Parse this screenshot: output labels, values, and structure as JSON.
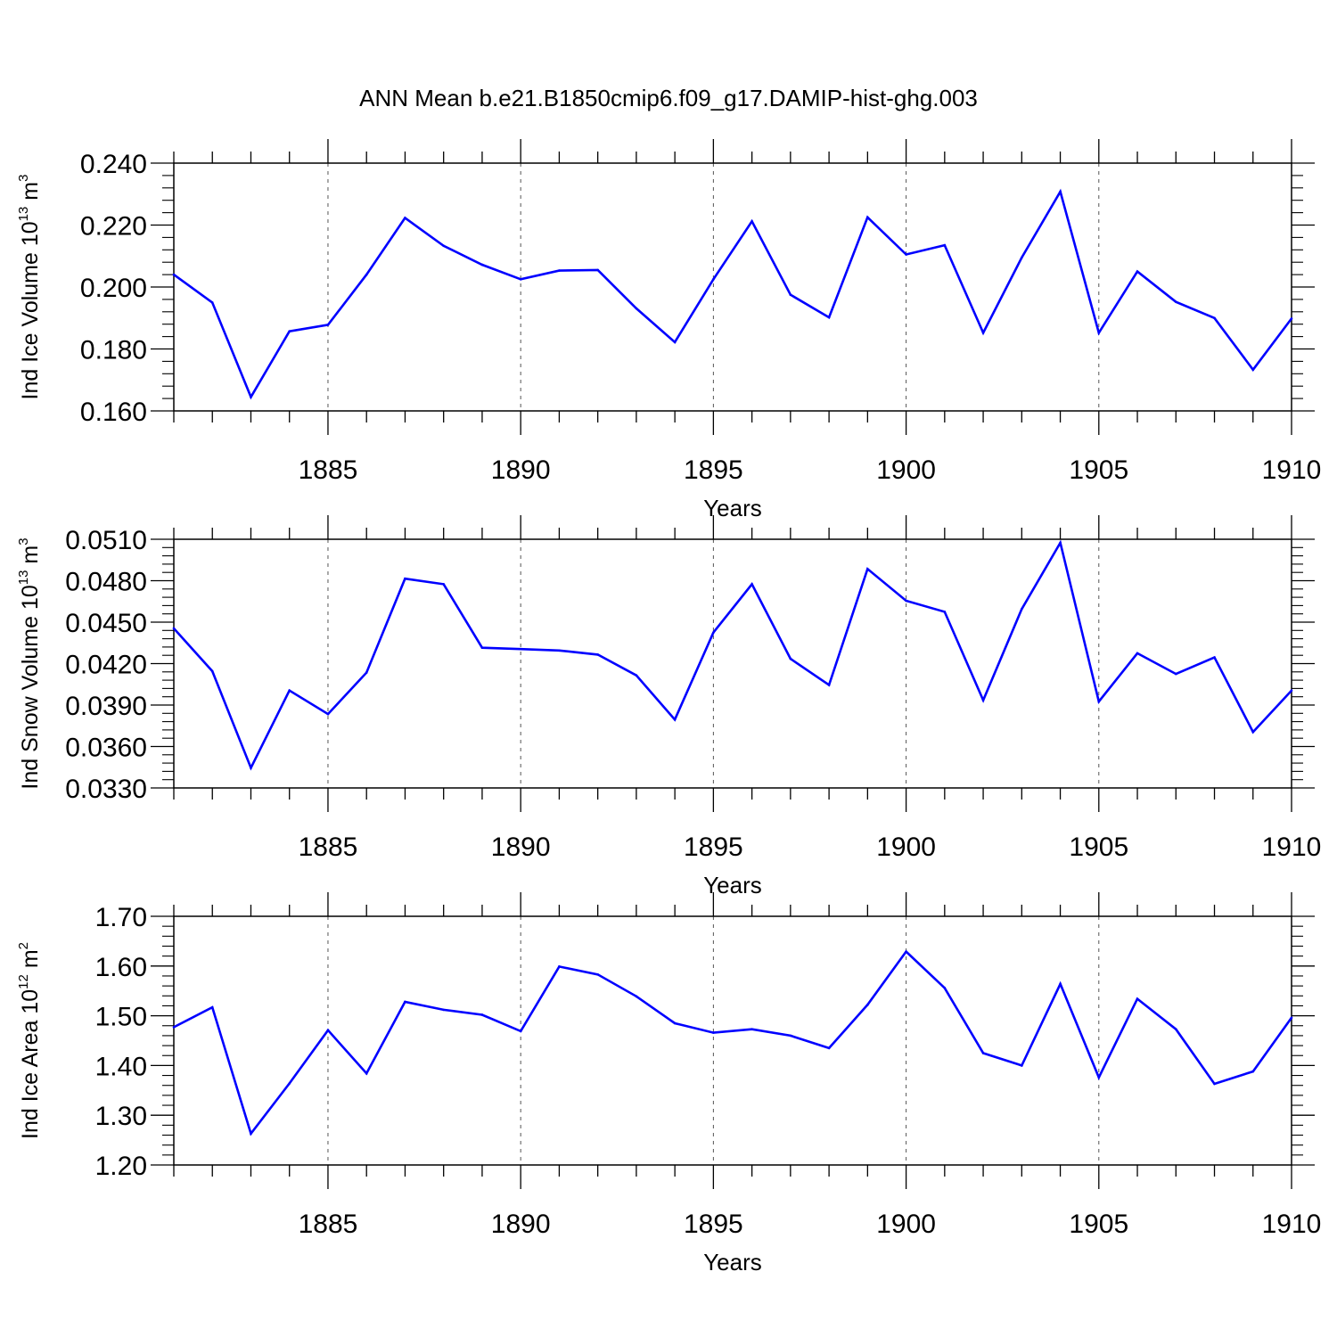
{
  "chart_data": [
    {
      "type": "line",
      "title": "ANN Mean b.e21.B1850cmip6.f09_g17.DAMIP-hist-ghg.003",
      "xlabel": "Years",
      "ylabel": "Ind Ice Volume 10",
      "ylabel_exp": "13",
      "ylabel_unit": " m",
      "ylabel_unit_exp": "3",
      "xlim": [
        1881,
        1910
      ],
      "ylim": [
        0.16,
        0.24
      ],
      "yticks": [
        0.16,
        0.18,
        0.2,
        0.22,
        0.24
      ],
      "ytick_labels": [
        "0.160",
        "0.180",
        "0.200",
        "0.220",
        "0.240"
      ],
      "xticks": [
        1885,
        1890,
        1895,
        1900,
        1905,
        1910
      ],
      "xtick_labels": [
        "1885",
        "1890",
        "1895",
        "1900",
        "1905",
        "1910"
      ],
      "grid": "dashed vertical at major x ticks",
      "color": "#0000ff",
      "x": [
        1881,
        1882,
        1883,
        1884,
        1885,
        1886,
        1887,
        1888,
        1889,
        1890,
        1891,
        1892,
        1893,
        1894,
        1895,
        1896,
        1897,
        1898,
        1899,
        1900,
        1901,
        1902,
        1903,
        1904,
        1905,
        1906,
        1907,
        1908,
        1909,
        1910
      ],
      "values": [
        0.204,
        0.195,
        0.1645,
        0.1857,
        0.1878,
        0.204,
        0.2223,
        0.2133,
        0.2072,
        0.2025,
        0.2053,
        0.2055,
        0.1931,
        0.1822,
        0.2025,
        0.2212,
        0.1975,
        0.1902,
        0.2225,
        0.2105,
        0.2135,
        0.1852,
        0.2095,
        0.2308,
        0.1852,
        0.205,
        0.1952,
        0.19,
        0.1733,
        0.1898
      ]
    },
    {
      "type": "line",
      "xlabel": "Years",
      "ylabel": "Ind Snow Volume 10",
      "ylabel_exp": "13",
      "ylabel_unit": " m",
      "ylabel_unit_exp": "3",
      "xlim": [
        1881,
        1910
      ],
      "ylim": [
        0.033,
        0.051
      ],
      "yticks": [
        0.033,
        0.036,
        0.039,
        0.042,
        0.045,
        0.048,
        0.051
      ],
      "ytick_labels": [
        "0.0330",
        "0.0360",
        "0.0390",
        "0.0420",
        "0.0450",
        "0.0480",
        "0.0510"
      ],
      "xticks": [
        1885,
        1890,
        1895,
        1900,
        1905,
        1910
      ],
      "xtick_labels": [
        "1885",
        "1890",
        "1895",
        "1900",
        "1905",
        "1910"
      ],
      "grid": "dashed vertical at major x ticks",
      "color": "#0000ff",
      "x": [
        1881,
        1882,
        1883,
        1884,
        1885,
        1886,
        1887,
        1888,
        1889,
        1890,
        1891,
        1892,
        1893,
        1894,
        1895,
        1896,
        1897,
        1898,
        1899,
        1900,
        1901,
        1902,
        1903,
        1904,
        1905,
        1906,
        1907,
        1908,
        1909,
        1910
      ],
      "values": [
        0.04455,
        0.04145,
        0.03445,
        0.04005,
        0.03835,
        0.04135,
        0.04815,
        0.04775,
        0.04315,
        0.04305,
        0.04295,
        0.04265,
        0.04115,
        0.03795,
        0.04425,
        0.04775,
        0.04235,
        0.04045,
        0.04885,
        0.04655,
        0.04575,
        0.03935,
        0.04595,
        0.05075,
        0.03925,
        0.04275,
        0.04125,
        0.04245,
        0.03705,
        0.04005
      ]
    },
    {
      "type": "line",
      "xlabel": "Years",
      "ylabel": "Ind Ice Area 10",
      "ylabel_exp": "12",
      "ylabel_unit": " m",
      "ylabel_unit_exp": "2",
      "xlim": [
        1881,
        1910
      ],
      "ylim": [
        1.2,
        1.7
      ],
      "yticks": [
        1.2,
        1.3,
        1.4,
        1.5,
        1.6,
        1.7
      ],
      "ytick_labels": [
        "1.20",
        "1.30",
        "1.40",
        "1.50",
        "1.60",
        "1.70"
      ],
      "xticks": [
        1885,
        1890,
        1895,
        1900,
        1905,
        1910
      ],
      "xtick_labels": [
        "1885",
        "1890",
        "1895",
        "1900",
        "1905",
        "1910"
      ],
      "grid": "dashed vertical at major x ticks",
      "color": "#0000ff",
      "x": [
        1881,
        1882,
        1883,
        1884,
        1885,
        1886,
        1887,
        1888,
        1889,
        1890,
        1891,
        1892,
        1893,
        1894,
        1895,
        1896,
        1897,
        1898,
        1899,
        1900,
        1901,
        1902,
        1903,
        1904,
        1905,
        1906,
        1907,
        1908,
        1909,
        1910
      ],
      "values": [
        1.477,
        1.517,
        1.263,
        1.364,
        1.471,
        1.384,
        1.528,
        1.512,
        1.502,
        1.469,
        1.599,
        1.583,
        1.539,
        1.485,
        1.466,
        1.473,
        1.46,
        1.435,
        1.522,
        1.629,
        1.556,
        1.425,
        1.4,
        1.564,
        1.376,
        1.534,
        1.473,
        1.363,
        1.388,
        1.496
      ]
    }
  ]
}
